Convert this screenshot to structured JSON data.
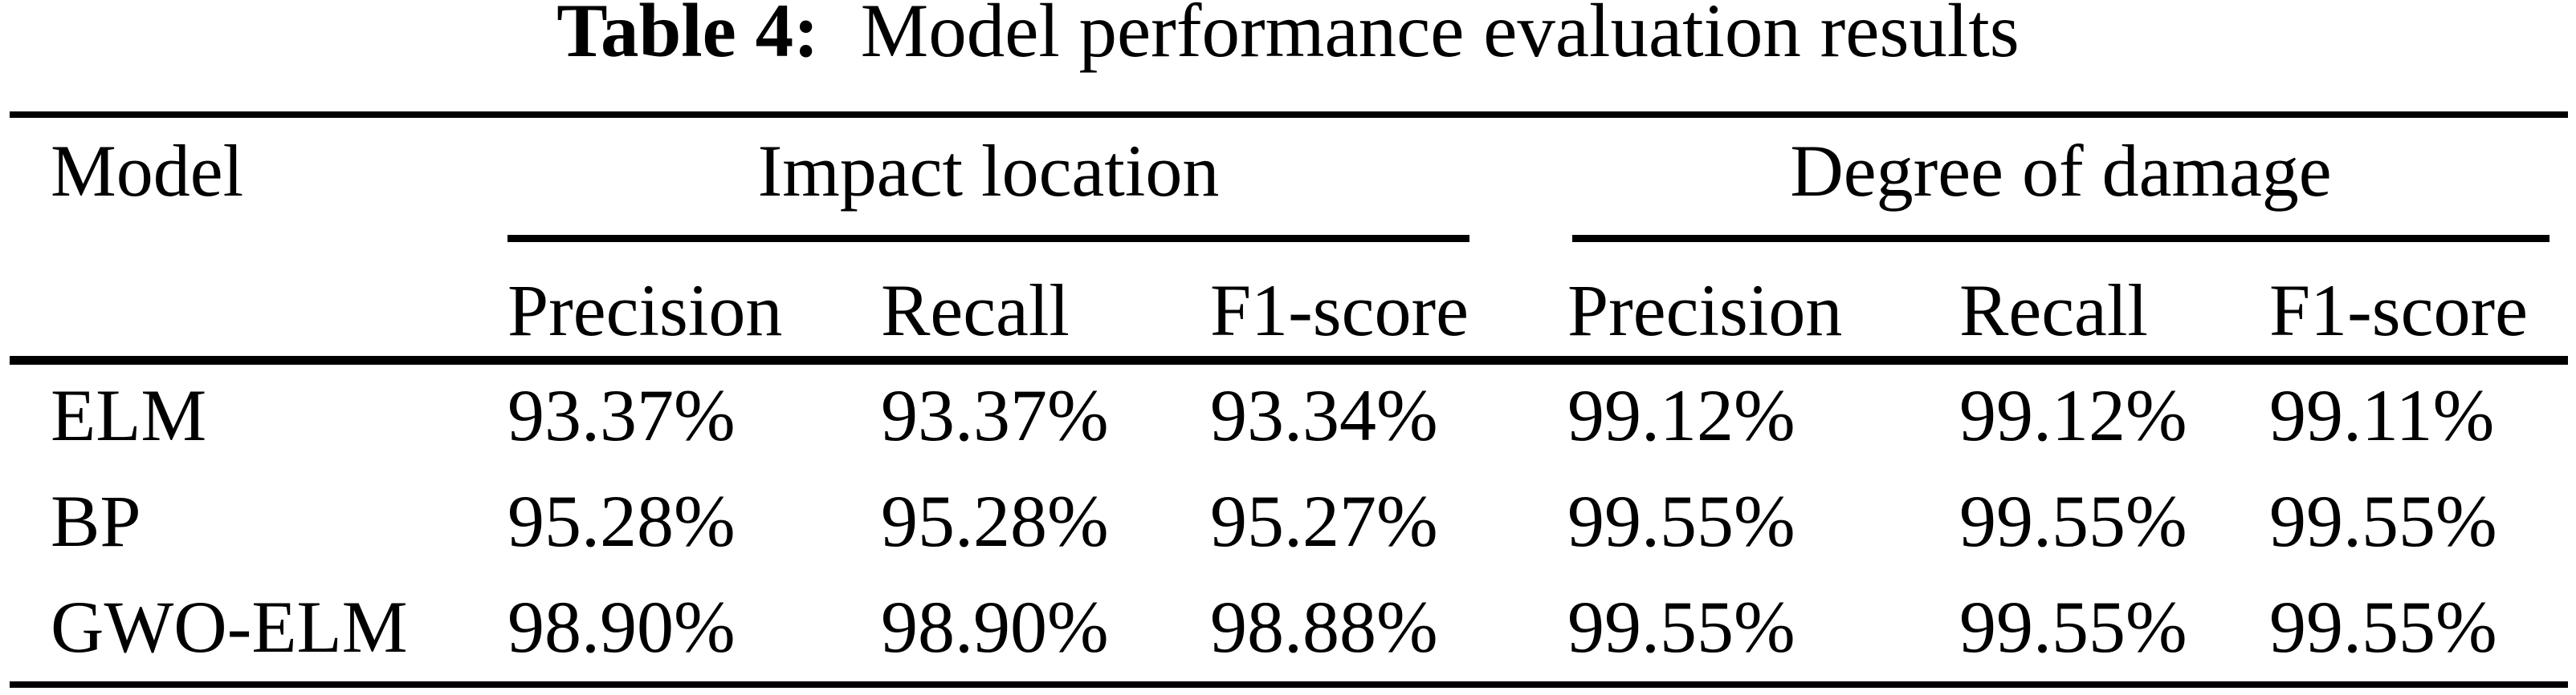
{
  "caption": {
    "label": "Table 4:",
    "text": "Model performance evaluation results"
  },
  "table": {
    "model_header": "Model",
    "groups": [
      {
        "label": "Impact location",
        "columns": [
          "Precision",
          "Recall",
          "F1-score"
        ]
      },
      {
        "label": "Degree of damage",
        "columns": [
          "Precision",
          "Recall",
          "F1-score"
        ]
      }
    ],
    "rows": [
      {
        "model": "ELM",
        "values": [
          "93.37%",
          "93.37%",
          "93.34%",
          "99.12%",
          "99.12%",
          "99.11%"
        ]
      },
      {
        "model": "BP",
        "values": [
          "95.28%",
          "95.28%",
          "95.27%",
          "99.55%",
          "99.55%",
          "99.55%"
        ]
      },
      {
        "model": "GWO-ELM",
        "values": [
          "98.90%",
          "98.90%",
          "98.88%",
          "99.55%",
          "99.55%",
          "99.55%"
        ]
      }
    ]
  },
  "colors": {
    "text": "#000000",
    "background": "#ffffff",
    "rule": "#000000"
  }
}
